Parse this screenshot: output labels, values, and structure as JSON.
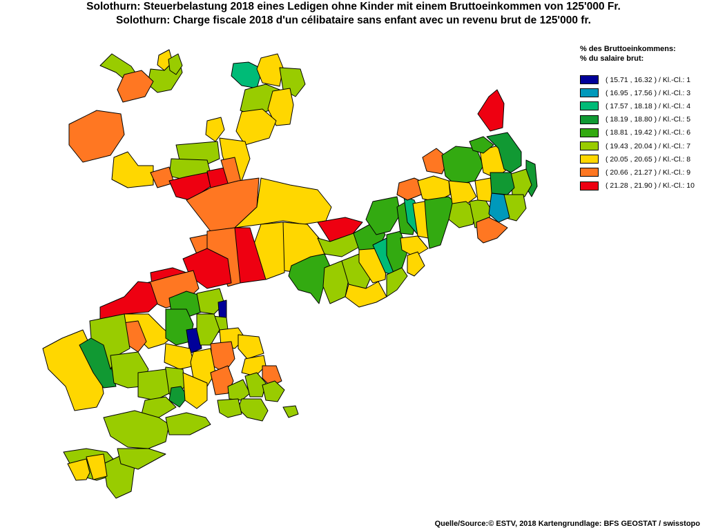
{
  "title_de": "Solothurn: Steuerbelastung 2018 eines Ledigen ohne Kinder mit einem Bruttoeinkommen von 125'000 Fr.",
  "title_fr": "Solothurn: Charge fiscale 2018 d'un célibataire sans enfant avec un revenu brut de 125'000 fr.",
  "legend": {
    "heading_de": "% des Bruttoeinkommens:",
    "heading_fr": "% du salaire brut:",
    "classes": [
      {
        "label": "( 15.71 , 16.32 ) / Kl.-Cl.: 1",
        "color": "#000099"
      },
      {
        "label": "( 16.95 , 17.56 ) / Kl.-Cl.: 3",
        "color": "#0099bb"
      },
      {
        "label": "( 17.57 , 18.18 ) / Kl.-Cl.: 4",
        "color": "#00bb77"
      },
      {
        "label": "( 18.19 , 18.80 ) / Kl.-Cl.: 5",
        "color": "#119933"
      },
      {
        "label": "( 18.81 , 19.42 ) / Kl.-Cl.: 6",
        "color": "#33aa11"
      },
      {
        "label": "( 19.43 , 20.04 ) / Kl.-Cl.: 7",
        "color": "#99cc00"
      },
      {
        "label": "( 20.05 , 20.65 ) / Kl.-Cl.: 8",
        "color": "#ffd700"
      },
      {
        "label": "( 20.66 , 21.27 ) / Kl.-Cl.: 9",
        "color": "#ff7722"
      },
      {
        "label": "( 21.28 , 21.90 ) / Kl.-Cl.: 10",
        "color": "#ee0011"
      }
    ]
  },
  "municipality_classes": [
    10,
    9,
    8,
    10,
    7,
    7,
    9,
    8,
    6,
    8,
    7,
    9,
    4,
    5,
    6,
    7,
    7,
    8,
    8,
    8,
    10,
    9,
    8,
    8,
    10,
    10,
    9,
    9,
    9,
    7,
    7,
    8,
    8,
    8,
    10,
    10,
    9,
    9,
    9,
    7,
    7,
    8,
    8,
    8,
    6,
    6,
    6,
    5,
    5,
    5,
    4,
    4,
    4,
    3,
    3,
    3,
    3,
    1,
    1,
    7,
    7,
    7,
    7,
    8,
    8,
    8,
    8,
    6,
    6,
    6,
    6,
    6,
    7,
    7,
    7,
    7,
    8,
    8,
    8,
    8,
    9,
    9,
    9,
    9,
    7,
    7,
    7,
    7,
    7,
    7,
    7,
    7,
    8,
    8,
    8,
    8,
    8,
    8,
    9,
    9,
    9,
    7,
    7,
    7,
    7,
    7,
    7,
    7,
    7,
    8,
    8,
    8,
    8,
    9,
    9,
    9,
    9,
    7,
    7,
    7,
    7,
    7,
    7,
    7,
    7,
    7,
    7,
    7,
    7,
    7,
    7,
    7,
    7,
    7,
    7,
    7,
    7,
    7,
    7,
    7,
    7,
    7,
    7
  ],
  "source": "Quelle/Source:© ESTV, 2018 Kartengrundlage: BFS GEOSTAT / swisstopo"
}
